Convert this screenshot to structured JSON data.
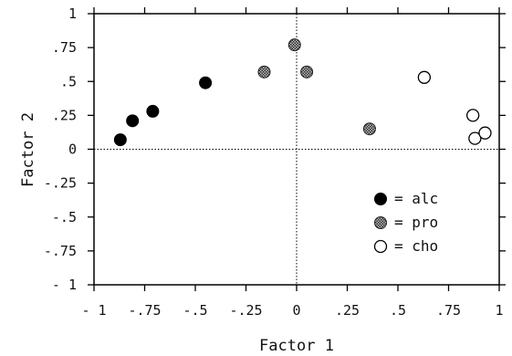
{
  "chart_data": {
    "type": "scatter",
    "xlabel": "Factor 1",
    "ylabel": "Factor 2",
    "xlim": [
      -1,
      1
    ],
    "ylim": [
      -1,
      1
    ],
    "x_ticks": [
      -1,
      -0.75,
      -0.5,
      -0.25,
      0,
      0.25,
      0.5,
      0.75,
      1
    ],
    "x_tick_labels": [
      "- 1",
      "-.75",
      "-.5",
      "-.25",
      "0",
      ".25",
      ".5",
      ".75",
      "1"
    ],
    "y_ticks": [
      1,
      0.75,
      0.5,
      0.25,
      0,
      -0.25,
      -0.5,
      -0.75,
      -1
    ],
    "y_tick_labels": [
      "1",
      ".75",
      ".5",
      ".25",
      "0",
      "-.25",
      "-.5",
      "-.75",
      "- 1"
    ],
    "reference_lines": "dotted lines at x = 0 and y = 0",
    "legend_position": "bottom-right",
    "series": [
      {
        "name": "alc",
        "legend_label": "= alc",
        "marker": "filled-black-circle",
        "color": "#000000",
        "points": [
          [
            -0.87,
            0.07
          ],
          [
            -0.81,
            0.21
          ],
          [
            -0.71,
            0.28
          ],
          [
            -0.45,
            0.49
          ]
        ]
      },
      {
        "name": "pro",
        "legend_label": "= pro",
        "marker": "stippled-gray-circle",
        "color": "#7a7a7a",
        "points": [
          [
            -0.16,
            0.57
          ],
          [
            -0.01,
            0.77
          ],
          [
            0.05,
            0.57
          ],
          [
            0.36,
            0.15
          ]
        ]
      },
      {
        "name": "cho",
        "legend_label": "= cho",
        "marker": "open-circle",
        "color": "#ffffff",
        "points": [
          [
            0.63,
            0.53
          ],
          [
            0.87,
            0.25
          ],
          [
            0.88,
            0.08
          ],
          [
            0.93,
            0.12
          ]
        ]
      }
    ]
  }
}
